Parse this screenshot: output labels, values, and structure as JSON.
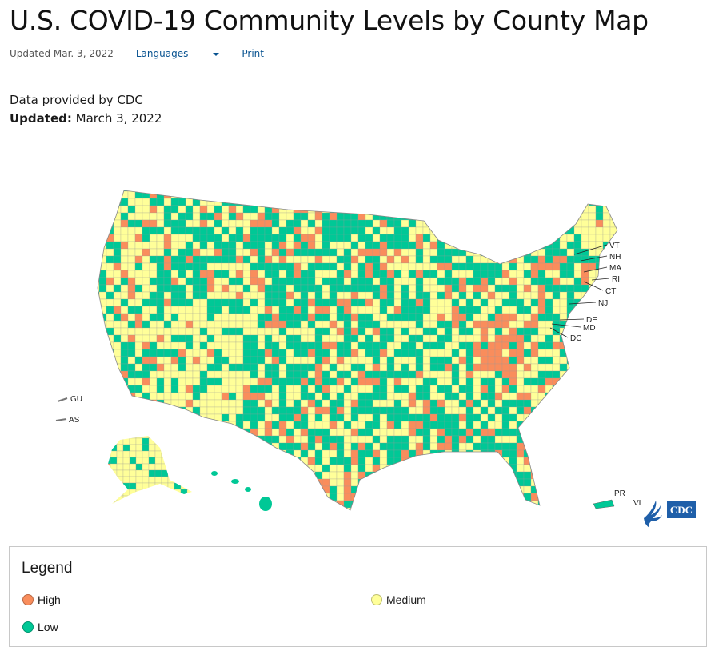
{
  "title": "U.S. COVID-19 Community Levels by County Map",
  "meta": {
    "updated": "Updated Mar. 3, 2022",
    "languages": "Languages",
    "print": "Print"
  },
  "source": {
    "provided": "Data provided by CDC",
    "updated_label": "Updated:",
    "updated_value": "March 3, 2022"
  },
  "map": {
    "state_labels": [
      "VT",
      "NH",
      "MA",
      "RI",
      "CT",
      "NJ",
      "DE",
      "MD",
      "DC"
    ],
    "territory_labels": [
      "GU",
      "AS",
      "PR",
      "VI"
    ],
    "logo": "CDC"
  },
  "legend": {
    "title": "Legend",
    "levels": [
      {
        "label": "High",
        "color": "#f98d5c"
      },
      {
        "label": "Medium",
        "color": "#ffff99"
      },
      {
        "label": "Low",
        "color": "#00c896"
      }
    ]
  }
}
